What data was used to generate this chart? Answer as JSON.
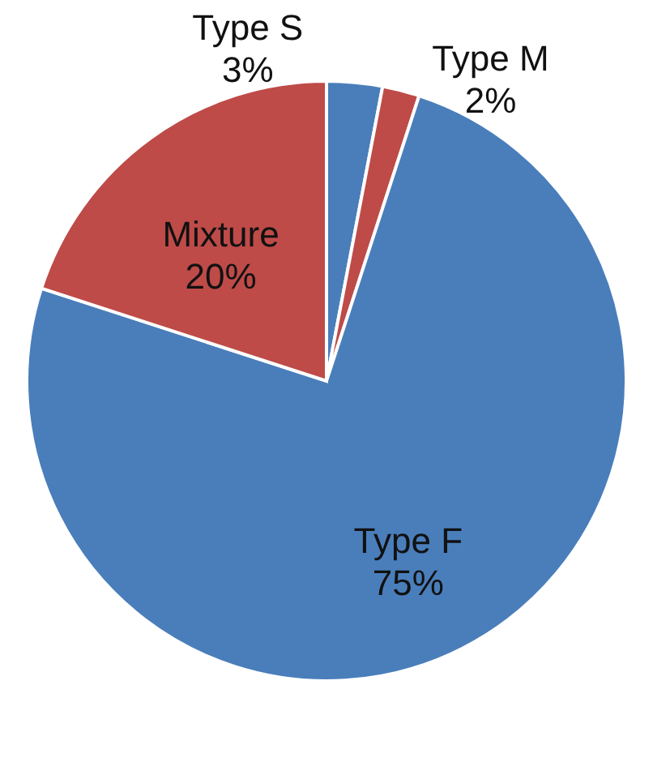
{
  "chart_data": {
    "type": "pie",
    "categories": [
      "Type S",
      "Type M",
      "Type F",
      "Mixture"
    ],
    "values": [
      3,
      2,
      75,
      20
    ],
    "colors": [
      "#4a7ebb",
      "#be4b48",
      "#4a7ebb",
      "#be4b48"
    ],
    "value_labels": [
      "3%",
      "2%",
      "75%",
      "20%"
    ],
    "legend": false
  }
}
